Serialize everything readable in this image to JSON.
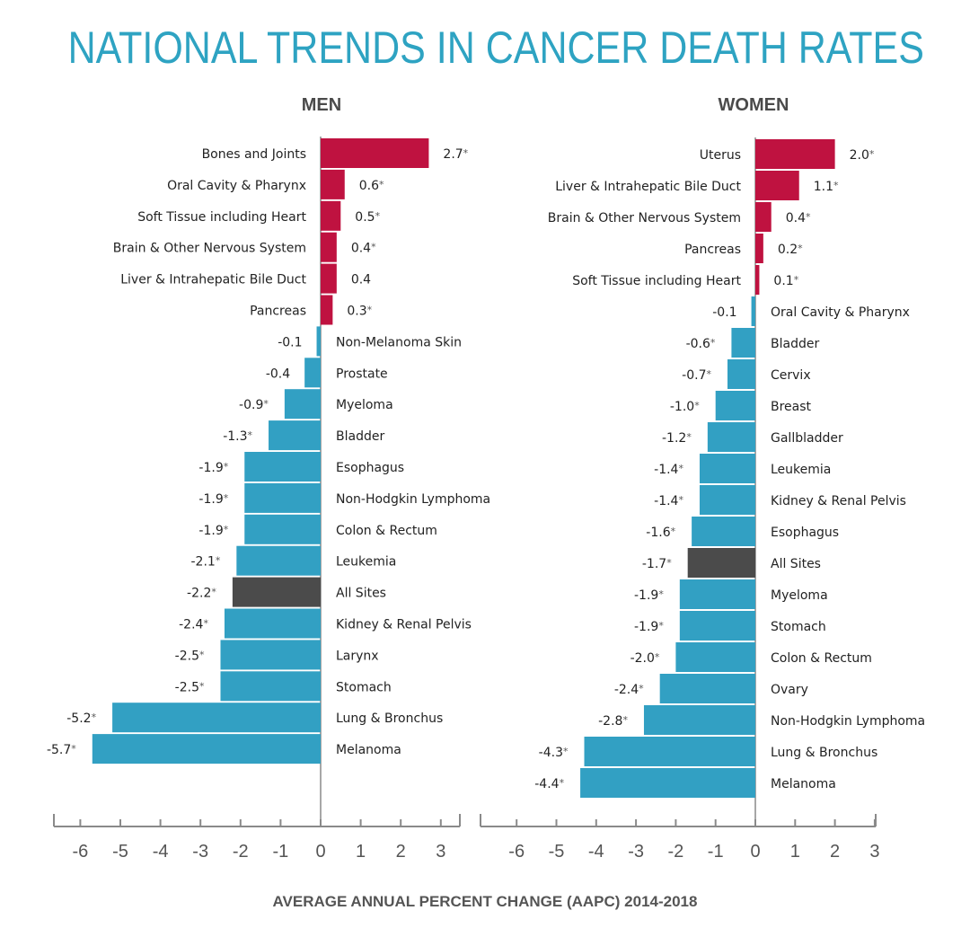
{
  "title": "NATIONAL TRENDS IN CANCER DEATH RATES",
  "footer": "AVERAGE ANNUAL PERCENT CHANGE (AAPC) 2014-2018",
  "colors": {
    "positive": "#bf1240",
    "negative": "#32a0c3",
    "all_sites": "#4b4b4b",
    "axis": "#8a8a8a",
    "title": "#2ea3c2"
  },
  "chart_data": [
    {
      "type": "bar",
      "orientation": "horizontal",
      "title": "MEN",
      "xlim": [
        -6,
        3
      ],
      "ticks": [
        -6,
        -5,
        -4,
        -3,
        -2,
        -1,
        0,
        1,
        2,
        3
      ],
      "categories": [
        "Bones and Joints",
        "Oral Cavity & Pharynx",
        "Soft Tissue including Heart",
        "Brain & Other Nervous System",
        "Liver & Intrahepatic Bile Duct",
        "Pancreas",
        "Non-Melanoma Skin",
        "Prostate",
        "Myeloma",
        "Bladder",
        "Esophagus",
        "Non-Hodgkin Lymphoma",
        "Colon & Rectum",
        "Leukemia",
        "All Sites",
        "Kidney & Renal Pelvis",
        "Larynx",
        "Stomach",
        "Lung & Bronchus",
        "Melanoma"
      ],
      "values": [
        2.7,
        0.6,
        0.5,
        0.4,
        0.4,
        0.3,
        -0.1,
        -0.4,
        -0.9,
        -1.3,
        -1.9,
        -1.9,
        -1.9,
        -2.1,
        -2.2,
        -2.4,
        -2.5,
        -2.5,
        -5.2,
        -5.7
      ],
      "labels": [
        "2.7",
        "0.6",
        "0.5",
        "0.4",
        "0.4",
        "0.3",
        "-0.1",
        "-0.4",
        "-0.9",
        "-1.3",
        "-1.9",
        "-1.9",
        "-1.9",
        "-2.1",
        "-2.2",
        "-2.4",
        "-2.5",
        "-2.5",
        "-5.2",
        "-5.7"
      ],
      "significant": [
        true,
        true,
        true,
        true,
        false,
        true,
        false,
        false,
        true,
        true,
        true,
        true,
        true,
        true,
        true,
        true,
        true,
        true,
        true,
        true
      ]
    },
    {
      "type": "bar",
      "orientation": "horizontal",
      "title": "WOMEN",
      "xlim": [
        -7,
        3
      ],
      "ticks": [
        -6,
        -5,
        -4,
        -3,
        -2,
        -1,
        0,
        1,
        2,
        3
      ],
      "categories": [
        "Uterus",
        "Liver & Intrahepatic Bile Duct",
        "Brain & Other Nervous System",
        "Pancreas",
        "Soft Tissue including Heart",
        "Oral Cavity & Pharynx",
        "Bladder",
        "Cervix",
        "Breast",
        "Gallbladder",
        "Leukemia",
        "Kidney & Renal Pelvis",
        "Esophagus",
        "All Sites",
        "Myeloma",
        "Stomach",
        "Colon & Rectum",
        "Ovary",
        "Non-Hodgkin Lymphoma",
        "Lung & Bronchus",
        "Melanoma"
      ],
      "values": [
        2.0,
        1.1,
        0.4,
        0.2,
        0.1,
        -0.1,
        -0.6,
        -0.7,
        -1.0,
        -1.2,
        -1.4,
        -1.4,
        -1.6,
        -1.7,
        -1.9,
        -1.9,
        -2.0,
        -2.4,
        -2.8,
        -4.3,
        -4.4
      ],
      "labels": [
        "2.0",
        "1.1",
        "0.4",
        "0.2",
        "0.1",
        "-0.1",
        "-0.6",
        "-0.7",
        "-1.0",
        "-1.2",
        "-1.4",
        "-1.4",
        "-1.6",
        "-1.7",
        "-1.9",
        "-1.9",
        "-2.0",
        "-2.4",
        "-2.8",
        "-4.3",
        "-4.4"
      ],
      "significant": [
        true,
        true,
        true,
        true,
        true,
        false,
        true,
        true,
        true,
        true,
        true,
        true,
        true,
        true,
        true,
        true,
        true,
        true,
        true,
        true,
        true
      ]
    }
  ]
}
